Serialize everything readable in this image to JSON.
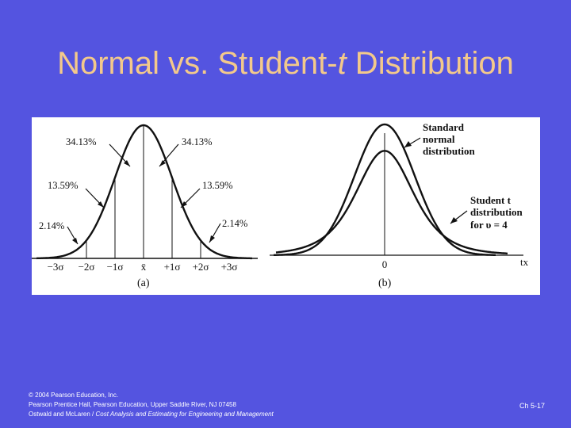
{
  "slide": {
    "title_prefix": "Normal vs. Student-",
    "title_t": "t",
    "title_suffix": " Distribution",
    "slide_number": "Ch 5-17"
  },
  "colors": {
    "background": "#5454e0",
    "title": "#f3c98b",
    "figure_background": "#ffffff",
    "ink": "#111111"
  },
  "footer": {
    "line1": "© 2004 Pearson Education, Inc.",
    "line2": "Pearson Prentice Hall, Pearson Education, Upper Saddle River, NJ 07458",
    "line3_prefix": "Ostwald and McLaren / ",
    "line3_italic": "Cost Analysis and Estimating for Engineering and Management"
  },
  "panel_a": {
    "caption": "(a)",
    "axis_labels": [
      "−3σ",
      "−2σ",
      "−1σ",
      "x̄",
      "+1σ",
      "+2σ",
      "+3σ"
    ],
    "percent_labels": {
      "inner_left": "34.13%",
      "inner_right": "34.13%",
      "middle_left": "13.59%",
      "middle_right": "13.59%",
      "outer_left": "2.14%",
      "outer_right": "2.14%"
    }
  },
  "panel_b": {
    "caption": "(b)",
    "zero_label": "0",
    "axis_end_label": "tx",
    "normal_label": [
      "Standard",
      "normal",
      "distribution"
    ],
    "student_label": [
      "Student t",
      "distribution",
      "for υ = 4"
    ]
  }
}
